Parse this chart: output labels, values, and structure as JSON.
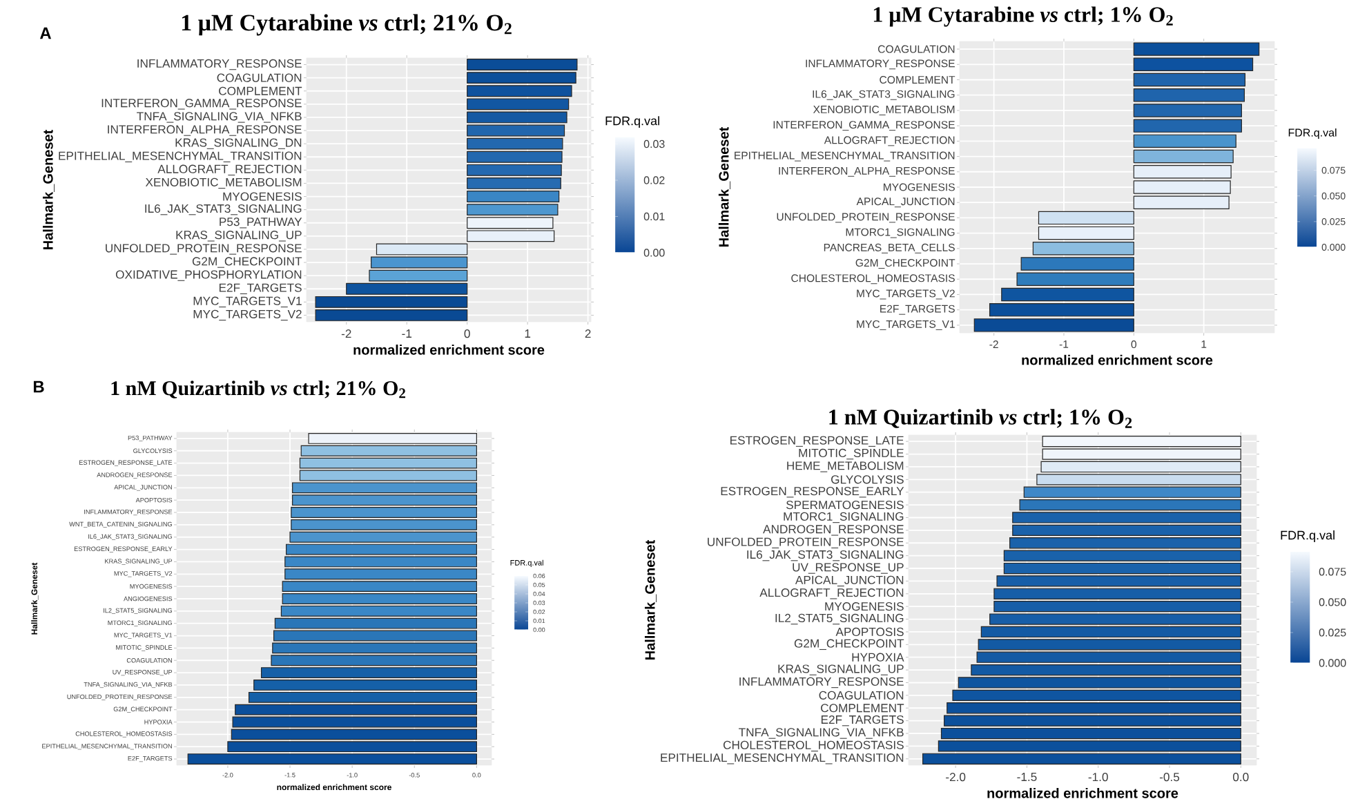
{
  "chart_data": [
    {
      "type": "bar",
      "orientation": "horizontal",
      "title": "1 μM Cytarabine *vs* ctrl; 21% O$_{2}$",
      "xlabel": "normalized enrichment score",
      "ylabel": "Hallmark_Geneset",
      "annotations": [
        "A"
      ],
      "categories": [
        "INFLAMMATORY_RESPONSE",
        "COAGULATION",
        "COMPLEMENT",
        "INTERFERON_GAMMA_RESPONSE",
        "TNFA_SIGNALING_VIA_NFKB",
        "INTERFERON_ALPHA_RESPONSE",
        "KRAS_SIGNALING_DN",
        "EPITHELIAL_MESENCHYMAL_TRANSITION",
        "ALLOGRAFT_REJECTION",
        "XENOBIOTIC_METABOLISM",
        "MYOGENESIS",
        "IL6_JAK_STAT3_SIGNALING",
        "P53_PATHWAY",
        "KRAS_SIGNALING_UP",
        "UNFOLDED_PROTEIN_RESPONSE",
        "G2M_CHECKPOINT",
        "OXIDATIVE_PHOSPHORYLATION",
        "E2F_TARGETS",
        "MYC_TARGETS_V1",
        "MYC_TARGETS_V2"
      ],
      "values": [
        1.82,
        1.8,
        1.73,
        1.68,
        1.65,
        1.61,
        1.58,
        1.57,
        1.56,
        1.55,
        1.52,
        1.5,
        1.42,
        1.44,
        -1.5,
        -1.59,
        -1.62,
        -2.0,
        -2.51,
        -2.51
      ],
      "colors": [
        "#0b4d98",
        "#0c4f9a",
        "#0f529e",
        "#1257a2",
        "#1459a3",
        "#2166ad",
        "#2368af",
        "#2368af",
        "#2469b0",
        "#266bb1",
        "#3a86c5",
        "#4e97cf",
        "#eef4fb",
        "#e8f0f9",
        "#dce9f5",
        "#4b95cf",
        "#5ba3d6",
        "#0e539e",
        "#0a4a94",
        "#0a4a94"
      ],
      "xlim": [
        -2.66,
        2.05
      ],
      "xticks": [
        -2,
        -1,
        0,
        1,
        2
      ],
      "grid": true,
      "clabel": "FDR.q.val",
      "clim": [
        0,
        0.032
      ],
      "cticks": [
        {
          "value": 0,
          "label": "0.00"
        },
        {
          "value": 0.01,
          "label": "0.01"
        },
        {
          "value": 0.02,
          "label": "0.02"
        },
        {
          "value": 0.03,
          "label": "0.03"
        }
      ]
    },
    {
      "type": "bar",
      "orientation": "horizontal",
      "title": "1 μM Cytarabine *vs* ctrl; 1% O$_{2}$",
      "xlabel": "normalized enrichment score",
      "ylabel": "Hallmark_Geneset",
      "categories": [
        "COAGULATION",
        "INFLAMMATORY_RESPONSE",
        "COMPLEMENT",
        "IL6_JAK_STAT3_SIGNALING",
        "XENOBIOTIC_METABOLISM",
        "INTERFERON_GAMMA_RESPONSE",
        "ALLOGRAFT_REJECTION",
        "EPITHELIAL_MESENCHYMAL_TRANSITION",
        "INTERFERON_ALPHA_RESPONSE",
        "MYOGENESIS",
        "APICAL_JUNCTION",
        "UNFOLDED_PROTEIN_RESPONSE",
        "MTORC1_SIGNALING",
        "PANCREAS_BETA_CELLS",
        "G2M_CHECKPOINT",
        "CHOLESTEROL_HOMEOSTASIS",
        "MYC_TARGETS_V2",
        "E2F_TARGETS",
        "MYC_TARGETS_V1"
      ],
      "values": [
        1.79,
        1.7,
        1.59,
        1.58,
        1.54,
        1.54,
        1.46,
        1.42,
        1.39,
        1.38,
        1.36,
        -1.36,
        -1.36,
        -1.44,
        -1.61,
        -1.67,
        -1.89,
        -2.06,
        -2.28
      ],
      "colors": [
        "#0b4f9b",
        "#0d52a0",
        "#1f64ac",
        "#1f64ac",
        "#2166ad",
        "#2166ad",
        "#4a94cc",
        "#7fb4dc",
        "#e6eff9",
        "#e6eff9",
        "#e6eff9",
        "#cfe1f2",
        "#e8f0fa",
        "#8cbde0",
        "#2c78bb",
        "#2e7cbc",
        "#0f55a0",
        "#0c4f9b",
        "#0a4b96"
      ],
      "xlim": [
        -2.49,
        2.01
      ],
      "xticks": [
        -2,
        -1,
        0,
        1
      ],
      "grid": true,
      "clabel": "FDR.q.val",
      "clim": [
        0,
        0.097
      ],
      "cticks": [
        {
          "value": 0,
          "label": "0.000"
        },
        {
          "value": 0.025,
          "label": "0.025"
        },
        {
          "value": 0.05,
          "label": "0.050"
        },
        {
          "value": 0.075,
          "label": "0.075"
        }
      ]
    },
    {
      "type": "bar",
      "orientation": "horizontal",
      "title": "1 nM Quizartinib *vs* ctrl; 21% O$_{2}$",
      "xlabel": "normalized enrichment score",
      "ylabel": "Hallmark_Geneset",
      "annotations": [
        "B"
      ],
      "categories": [
        "P53_PATHWAY",
        "GLYCOLYSIS",
        "ESTROGEN_RESPONSE_LATE",
        "ANDROGEN_RESPONSE",
        "APICAL_JUNCTION",
        "APOPTOSIS",
        "INFLAMMATORY_RESPONSE",
        "WNT_BETA_CATENIN_SIGNALING",
        "IL6_JAK_STAT3_SIGNALING",
        "ESTROGEN_RESPONSE_EARLY",
        "KRAS_SIGNALING_UP",
        "MYC_TARGETS_V2",
        "MYOGENESIS",
        "ANGIOGENESIS",
        "IL2_STAT5_SIGNALING",
        "MTORC1_SIGNALING",
        "MYC_TARGETS_V1",
        "MITOTIC_SPINDLE",
        "COAGULATION",
        "UV_RESPONSE_UP",
        "TNFA_SIGNALING_VIA_NFKB",
        "UNFOLDED_PROTEIN_RESPONSE",
        "G2M_CHECKPOINT",
        "HYPOXIA",
        "CHOLESTEROL_HOMEOSTASIS",
        "EPITHELIAL_MESENCHYMAL_TRANSITION",
        "E2F_TARGETS"
      ],
      "values": [
        -1.35,
        -1.41,
        -1.42,
        -1.42,
        -1.48,
        -1.48,
        -1.49,
        -1.49,
        -1.5,
        -1.53,
        -1.54,
        -1.54,
        -1.56,
        -1.56,
        -1.57,
        -1.62,
        -1.63,
        -1.64,
        -1.65,
        -1.73,
        -1.79,
        -1.83,
        -1.94,
        -1.96,
        -1.97,
        -2.0,
        -2.32
      ],
      "colors": [
        "#eef3fa",
        "#8fc0e2",
        "#8fc0e2",
        "#8fc0e2",
        "#4b94cd",
        "#4b94cd",
        "#4b94cd",
        "#4b94cd",
        "#4b94cd",
        "#3a87c6",
        "#3a87c6",
        "#3a87c6",
        "#3a87c6",
        "#3a87c6",
        "#3a87c6",
        "#2a76b8",
        "#2a76b8",
        "#2a76b8",
        "#2a76b8",
        "#1560a8",
        "#1560a8",
        "#1560a8",
        "#0b4f9c",
        "#0b4f9c",
        "#0b4f9c",
        "#0b4f9c",
        "#0b4f9c"
      ],
      "xlim": [
        -2.41,
        0.12
      ],
      "xticks": [
        {
          "value": -2,
          "label": "-2.0"
        },
        {
          "value": -1.5,
          "label": "-1.5"
        },
        {
          "value": -1,
          "label": "-1.0"
        },
        {
          "value": -0.5,
          "label": "-0.5"
        },
        {
          "value": 0,
          "label": "0.0"
        }
      ],
      "grid": true,
      "clabel": "FDR.q.val",
      "clim": [
        0,
        0.06
      ],
      "cticks": [
        {
          "value": 0,
          "label": "0.00"
        },
        {
          "value": 0.01,
          "label": "0.01"
        },
        {
          "value": 0.02,
          "label": "0.02"
        },
        {
          "value": 0.03,
          "label": "0.03"
        },
        {
          "value": 0.04,
          "label": "0.04"
        },
        {
          "value": 0.05,
          "label": "0.05"
        },
        {
          "value": 0.06,
          "label": "0.06"
        }
      ]
    },
    {
      "type": "bar",
      "orientation": "horizontal",
      "title": "1 nM Quizartinib *vs* ctrl; 1% O$_{2}$",
      "xlabel": "normalized enrichment score",
      "ylabel": "Hallmark_Geneset",
      "categories": [
        "ESTROGEN_RESPONSE_LATE",
        "MITOTIC_SPINDLE",
        "HEME_METABOLISM",
        "GLYCOLYSIS",
        "ESTROGEN_RESPONSE_EARLY",
        "SPERMATOGENESIS",
        "MTORC1_SIGNALING",
        "ANDROGEN_RESPONSE",
        "UNFOLDED_PROTEIN_RESPONSE",
        "IL6_JAK_STAT3_SIGNALING",
        "UV_RESPONSE_UP",
        "APICAL_JUNCTION",
        "ALLOGRAFT_REJECTION",
        "MYOGENESIS",
        "IL2_STAT5_SIGNALING",
        "APOPTOSIS",
        "G2M_CHECKPOINT",
        "HYPOXIA",
        "KRAS_SIGNALING_UP",
        "INFLAMMATORY_RESPONSE",
        "COAGULATION",
        "COMPLEMENT",
        "E2F_TARGETS",
        "TNFA_SIGNALING_VIA_NFKB",
        "CHOLESTEROL_HOMEOSTASIS",
        "EPITHELIAL_MESENCHYMAL_TRANSITION"
      ],
      "values": [
        -1.39,
        -1.39,
        -1.4,
        -1.43,
        -1.52,
        -1.55,
        -1.6,
        -1.6,
        -1.62,
        -1.66,
        -1.66,
        -1.71,
        -1.73,
        -1.73,
        -1.76,
        -1.82,
        -1.84,
        -1.85,
        -1.89,
        -1.98,
        -2.02,
        -2.06,
        -2.08,
        -2.1,
        -2.12,
        -2.23
      ],
      "colors": [
        "#f3f7fc",
        "#f0f5fb",
        "#e0ebf6",
        "#c9dcef",
        "#3f88c8",
        "#2b76b9",
        "#1a62ab",
        "#1a62ab",
        "#1a62ab",
        "#1a62ab",
        "#1a62ab",
        "#175ea8",
        "#175ea8",
        "#175ea8",
        "#175ea8",
        "#135aa4",
        "#135aa4",
        "#135aa4",
        "#135aa4",
        "#0f55a0",
        "#0f55a0",
        "#0c509c",
        "#0c509c",
        "#0c509c",
        "#0c509c",
        "#0c509c"
      ],
      "xlim": [
        -2.33,
        0.11
      ],
      "xticks": [
        {
          "value": -2,
          "label": "-2.0"
        },
        {
          "value": -1.5,
          "label": "-1.5"
        },
        {
          "value": -1,
          "label": "-1.0"
        },
        {
          "value": -0.5,
          "label": "-0.5"
        },
        {
          "value": 0,
          "label": "0.0"
        }
      ],
      "grid": true,
      "clabel": "FDR.q.val",
      "clim": [
        0,
        0.092
      ],
      "cticks": [
        {
          "value": 0,
          "label": "0.000"
        },
        {
          "value": 0.025,
          "label": "0.025"
        },
        {
          "value": 0.05,
          "label": "0.050"
        },
        {
          "value": 0.075,
          "label": "0.075"
        }
      ]
    }
  ]
}
